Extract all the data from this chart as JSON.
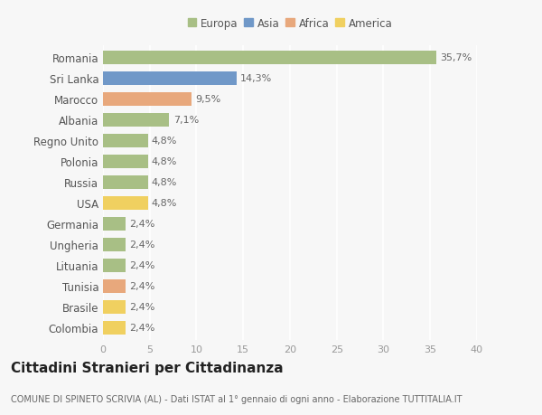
{
  "categories": [
    "Romania",
    "Sri Lanka",
    "Marocco",
    "Albania",
    "Regno Unito",
    "Polonia",
    "Russia",
    "USA",
    "Germania",
    "Ungheria",
    "Lituania",
    "Tunisia",
    "Brasile",
    "Colombia"
  ],
  "values": [
    35.7,
    14.3,
    9.5,
    7.1,
    4.8,
    4.8,
    4.8,
    4.8,
    2.4,
    2.4,
    2.4,
    2.4,
    2.4,
    2.4
  ],
  "labels": [
    "35,7%",
    "14,3%",
    "9,5%",
    "7,1%",
    "4,8%",
    "4,8%",
    "4,8%",
    "4,8%",
    "2,4%",
    "2,4%",
    "2,4%",
    "2,4%",
    "2,4%",
    "2,4%"
  ],
  "bar_colors": [
    "#a8bf85",
    "#7098c8",
    "#e8a87c",
    "#a8bf85",
    "#a8bf85",
    "#a8bf85",
    "#a8bf85",
    "#f0d060",
    "#a8bf85",
    "#a8bf85",
    "#a8bf85",
    "#e8a87c",
    "#f0d060",
    "#f0d060"
  ],
  "legend_labels": [
    "Europa",
    "Asia",
    "Africa",
    "America"
  ],
  "legend_colors": [
    "#a8bf85",
    "#7098c8",
    "#e8a87c",
    "#f0d060"
  ],
  "title": "Cittadini Stranieri per Cittadinanza",
  "subtitle": "COMUNE DI SPINETO SCRIVIA (AL) - Dati ISTAT al 1° gennaio di ogni anno - Elaborazione TUTTITALIA.IT",
  "xlim": [
    0,
    40
  ],
  "xticks": [
    0,
    5,
    10,
    15,
    20,
    25,
    30,
    35,
    40
  ],
  "background_color": "#f7f7f7",
  "grid_color": "#ffffff",
  "bar_height": 0.65,
  "label_fontsize": 8,
  "ytick_fontsize": 8.5,
  "xtick_fontsize": 8,
  "title_fontsize": 11,
  "subtitle_fontsize": 7
}
